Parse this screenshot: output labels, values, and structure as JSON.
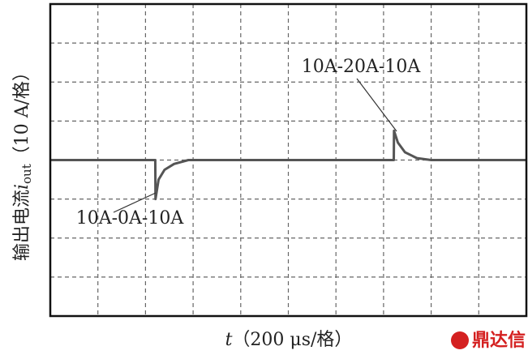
{
  "chart_data": {
    "type": "line",
    "ylabel": {
      "prefix": "输出电流",
      "symbol": "i",
      "subscript": "out",
      "unit": "（10 A/格）"
    },
    "xlabel": {
      "symbol": "t",
      "unit": "（200 μs/格）"
    },
    "annotations": [
      "10A-20A-10A",
      "10A-0A-10A"
    ],
    "watermark": "鼎达信",
    "x": [
      0,
      430,
      441,
      442,
      455,
      480,
      520,
      580,
      1430,
      1443,
      1444,
      1460,
      1490,
      1540,
      1600,
      2000
    ],
    "series": [
      {
        "name": "i_out",
        "color": "#555555",
        "values": [
          10,
          10,
          10,
          0,
          5,
          7.5,
          9,
          10,
          10,
          10,
          17.5,
          14.5,
          12,
          10.5,
          10,
          10
        ]
      }
    ],
    "xlim": [
      0,
      2000
    ],
    "ylim": [
      -30,
      50
    ],
    "xticks": [
      200,
      400,
      600,
      800,
      1000,
      1200,
      1400,
      1600,
      1800
    ],
    "yticks": [
      -20,
      -10,
      0,
      10,
      20,
      30,
      40
    ],
    "grid": true
  }
}
